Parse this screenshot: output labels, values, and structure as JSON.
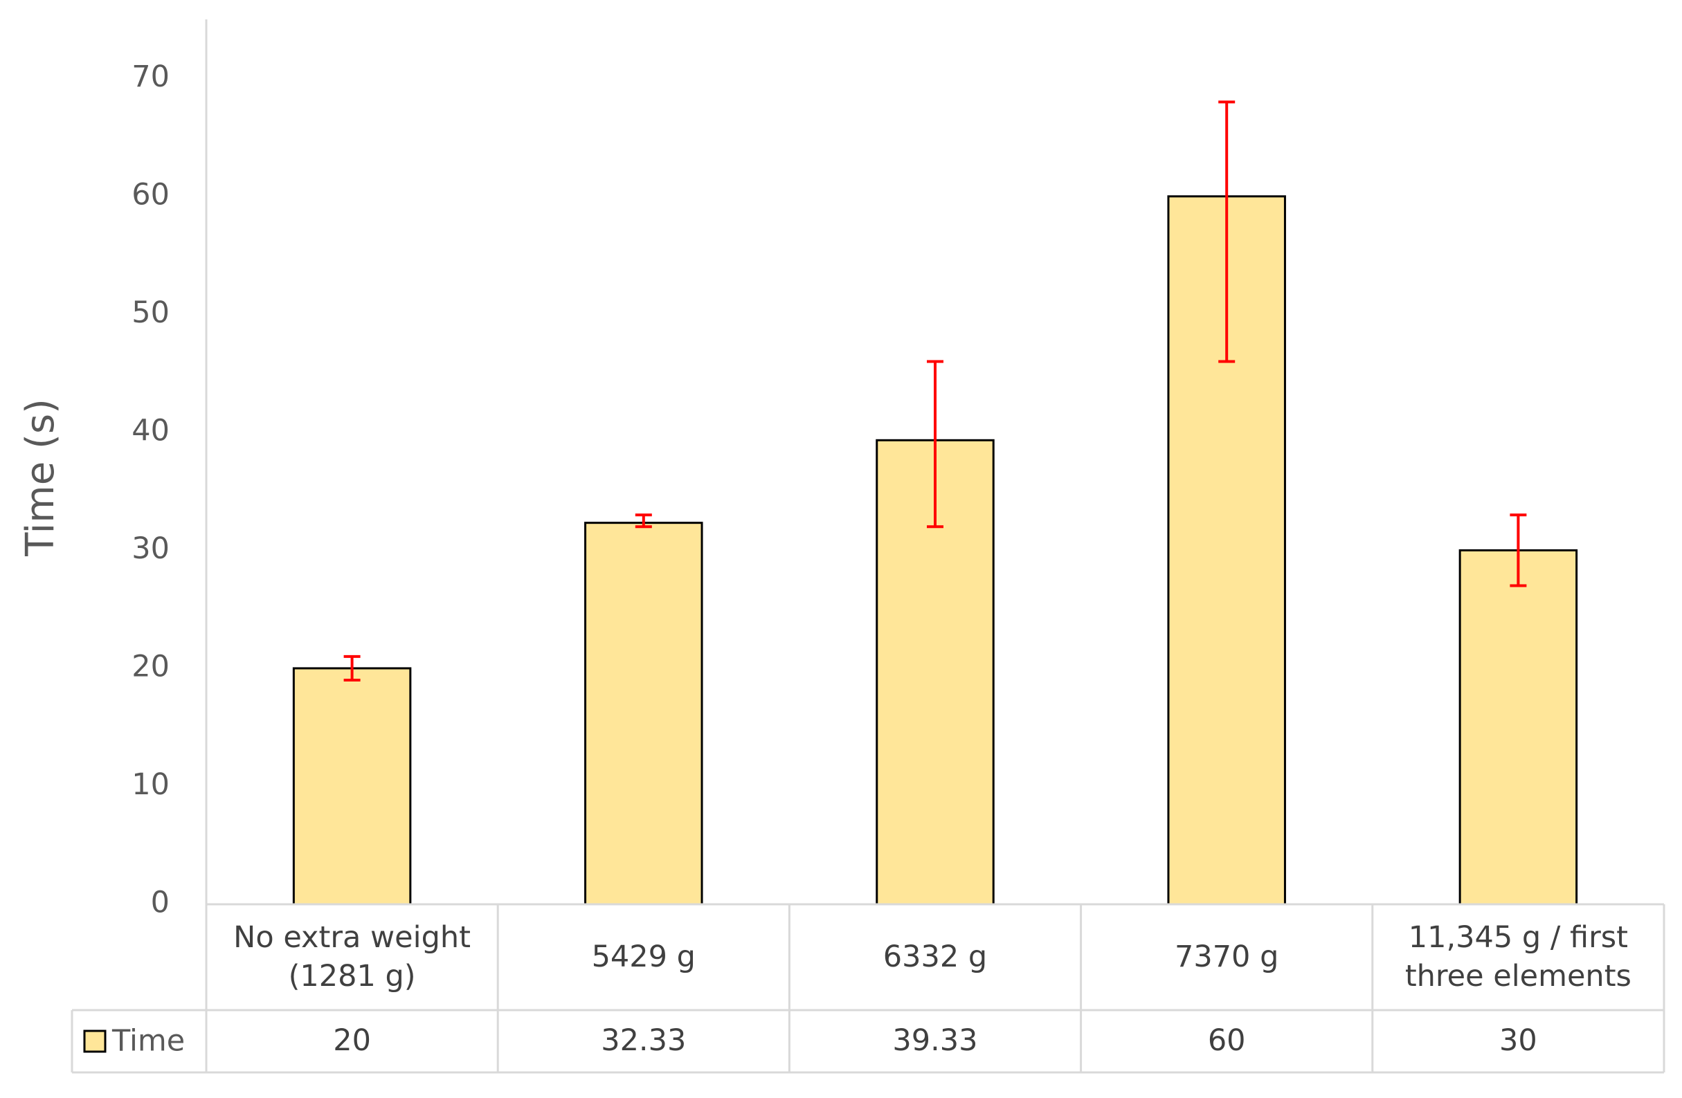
{
  "chart_data": {
    "type": "bar",
    "y_label": "Time (s)",
    "categories": [
      "No extra weight (1281 g)",
      "5429 g",
      "6332 g",
      "7370 g",
      "11,345 g / first three elements"
    ],
    "series": [
      {
        "name": "Time",
        "color": "#FFE699",
        "values": [
          20,
          32.33,
          39.33,
          60,
          30
        ],
        "error_plus": [
          1,
          0.67,
          6.67,
          8,
          3
        ],
        "error_minus": [
          1,
          0.33,
          7.33,
          14,
          3
        ],
        "error_color": "#FF0000"
      }
    ],
    "ylim": [
      0,
      75
    ],
    "yticks": [
      0,
      10,
      20,
      30,
      40,
      50,
      60,
      70
    ],
    "grid": false,
    "data_table": true
  }
}
